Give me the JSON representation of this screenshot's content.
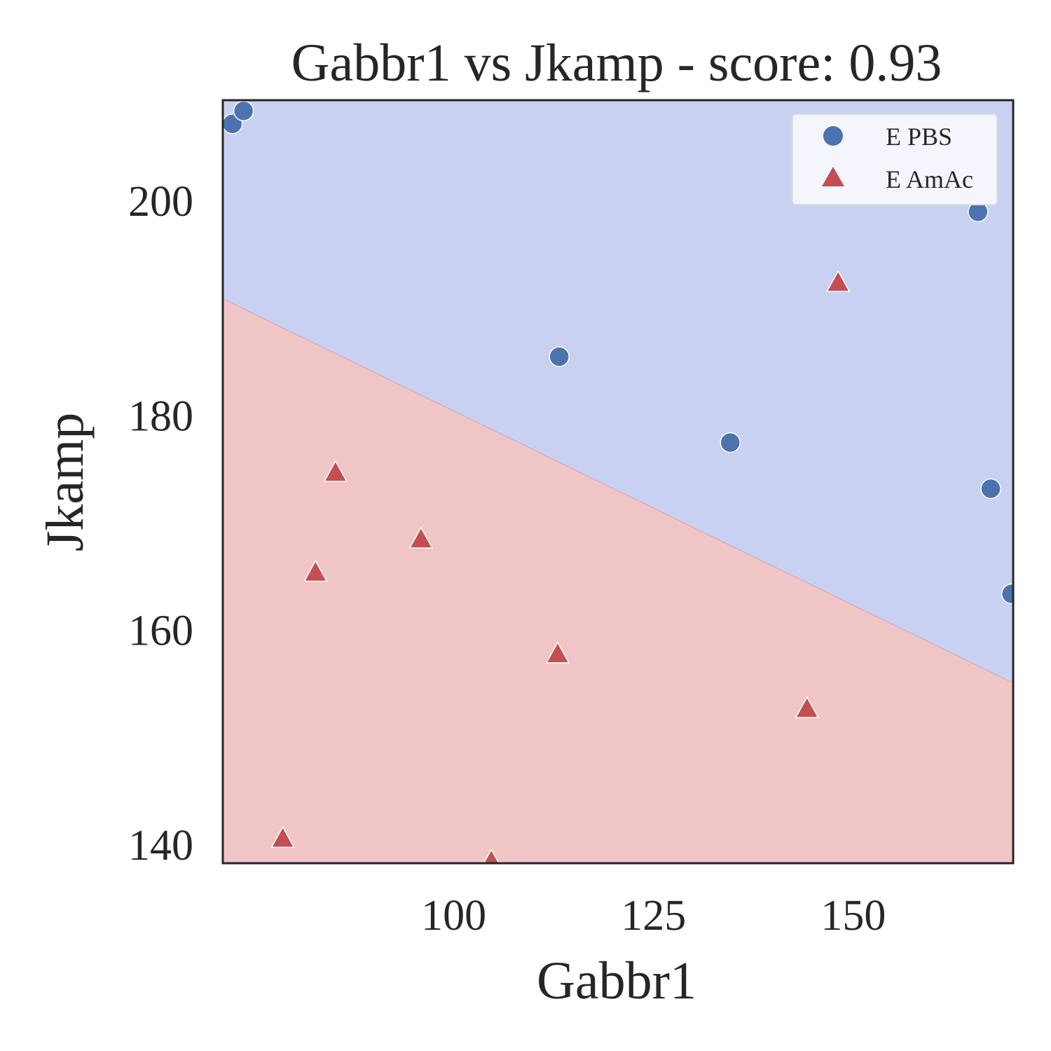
{
  "chart_data": {
    "type": "scatter",
    "title": "Gabbr1 vs Jkamp - score: 0.93",
    "xlabel": "Gabbr1",
    "ylabel": "Jkamp",
    "xlim": [
      71.1,
      170.0
    ],
    "ylim": [
      138.3,
      209.4
    ],
    "xticks": [
      100,
      125,
      150
    ],
    "yticks": [
      140,
      160,
      180,
      200
    ],
    "grid": false,
    "legend_position": "top-right",
    "decision_boundary": {
      "x": [
        71.1,
        170.0
      ],
      "y": [
        190.9,
        155.1
      ]
    },
    "regions": [
      {
        "name": "E PBS",
        "side": "above",
        "color": "#c9d1f2"
      },
      {
        "name": "E AmAc",
        "side": "below",
        "color": "#f0c5c5"
      }
    ],
    "series": [
      {
        "name": "E PBS",
        "marker": "circle",
        "color": "#4c72b0",
        "points": [
          {
            "x": 72.3,
            "y": 207.2
          },
          {
            "x": 73.7,
            "y": 208.4
          },
          {
            "x": 165.6,
            "y": 199.0
          },
          {
            "x": 113.2,
            "y": 185.5
          },
          {
            "x": 134.6,
            "y": 177.5
          },
          {
            "x": 167.2,
            "y": 173.2
          },
          {
            "x": 169.8,
            "y": 163.4
          }
        ]
      },
      {
        "name": "E AmAc",
        "marker": "triangle",
        "color": "#c44e52",
        "points": [
          {
            "x": 148.1,
            "y": 192.3
          },
          {
            "x": 85.2,
            "y": 174.6
          },
          {
            "x": 95.9,
            "y": 168.4
          },
          {
            "x": 82.7,
            "y": 165.3
          },
          {
            "x": 113.0,
            "y": 157.7
          },
          {
            "x": 144.2,
            "y": 152.6
          },
          {
            "x": 78.6,
            "y": 140.5
          },
          {
            "x": 104.7,
            "y": 138.4
          }
        ]
      }
    ]
  }
}
